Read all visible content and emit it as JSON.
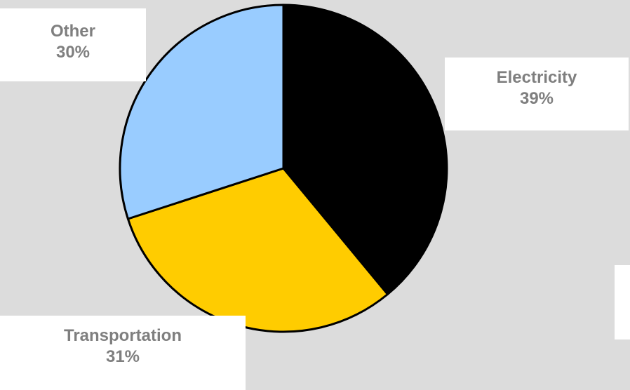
{
  "chart_data": {
    "type": "pie",
    "title": "",
    "categories": [
      "Electricity",
      "Transportation",
      "Other"
    ],
    "values": [
      39,
      31,
      30
    ],
    "labels": [
      "39%",
      "31%",
      "30%"
    ],
    "colors": [
      "#000000",
      "#ffcc00",
      "#99ccff"
    ],
    "legend": "none"
  },
  "labels": {
    "electricity": {
      "name": "Electricity",
      "pct": "39%"
    },
    "transportation": {
      "name": "Transportation",
      "pct": "31%"
    },
    "other": {
      "name": "Other",
      "pct": "30%"
    }
  },
  "colors": {
    "background": "#dcdcdc",
    "label_text": "#7f7f7f",
    "slice_outline": "#000000"
  }
}
